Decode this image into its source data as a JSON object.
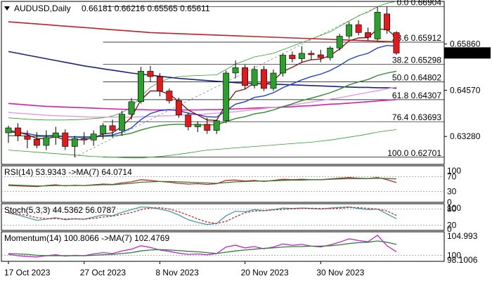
{
  "header": {
    "symbol_timeframe": "AUDUSD,Daily",
    "ohlc": "0.66181 0.66216 0.65565 0.65611"
  },
  "colors": {
    "bull": "#2ca02c",
    "bear": "#e31a1c",
    "ema_fast": "#8b1a1a",
    "ema_blue": "#1f3fd0",
    "ema_green": "#2e8b2e",
    "ma_red": "#c0202a",
    "ma_navy": "#1a237e",
    "ma_magenta": "#d81ea8",
    "ma_pink": "#e49ae0",
    "bollinger": "#2ca02c",
    "fib": "#000000",
    "rsi_line": "#c62828",
    "rsi_ma": "#2e7d32",
    "stoch_main": "#3aa0a8",
    "stoch_signal": "#c62828",
    "momentum_line": "#c026d3",
    "momentum_ma": "#2e7d32"
  },
  "chart_data": [
    {
      "type": "candlestick",
      "symbol": "AUDUSD",
      "timeframe": "Daily",
      "ylim": [
        0.625,
        0.6705
      ],
      "y_ticks": [
        "0.65860",
        "0.64570",
        "0.63280"
      ],
      "last_price": "0.65611",
      "x_tick_labels": [
        "17 Oct 2023",
        "27 Oct 2023",
        "8 Nov 2023",
        "20 Nov 2023",
        "30 Nov 2023"
      ],
      "x_tick_index": [
        0,
        8,
        16,
        25,
        33
      ],
      "candles": [
        {
          "o": 0.6338,
          "h": 0.6358,
          "l": 0.631,
          "c": 0.6352
        },
        {
          "o": 0.6352,
          "h": 0.6365,
          "l": 0.6315,
          "c": 0.633
        },
        {
          "o": 0.633,
          "h": 0.6345,
          "l": 0.6295,
          "c": 0.632
        },
        {
          "o": 0.632,
          "h": 0.634,
          "l": 0.6295,
          "c": 0.6303
        },
        {
          "o": 0.6303,
          "h": 0.6345,
          "l": 0.629,
          "c": 0.6325
        },
        {
          "o": 0.6325,
          "h": 0.6355,
          "l": 0.6305,
          "c": 0.6338
        },
        {
          "o": 0.6338,
          "h": 0.6348,
          "l": 0.629,
          "c": 0.63
        },
        {
          "o": 0.63,
          "h": 0.633,
          "l": 0.627,
          "c": 0.6322
        },
        {
          "o": 0.6322,
          "h": 0.634,
          "l": 0.6305,
          "c": 0.6318
        },
        {
          "o": 0.6318,
          "h": 0.6345,
          "l": 0.6302,
          "c": 0.6335
        },
        {
          "o": 0.6335,
          "h": 0.6365,
          "l": 0.632,
          "c": 0.6358
        },
        {
          "o": 0.6358,
          "h": 0.6375,
          "l": 0.6325,
          "c": 0.6345
        },
        {
          "o": 0.6345,
          "h": 0.64,
          "l": 0.633,
          "c": 0.639
        },
        {
          "o": 0.639,
          "h": 0.6435,
          "l": 0.6375,
          "c": 0.6425
        },
        {
          "o": 0.6425,
          "h": 0.6522,
          "l": 0.642,
          "c": 0.651
        },
        {
          "o": 0.651,
          "h": 0.6525,
          "l": 0.648,
          "c": 0.6495
        },
        {
          "o": 0.6495,
          "h": 0.6505,
          "l": 0.644,
          "c": 0.6455
        },
        {
          "o": 0.6455,
          "h": 0.6462,
          "l": 0.642,
          "c": 0.6428
        },
        {
          "o": 0.6428,
          "h": 0.6436,
          "l": 0.638,
          "c": 0.6388
        },
        {
          "o": 0.6388,
          "h": 0.6395,
          "l": 0.6345,
          "c": 0.6355
        },
        {
          "o": 0.6355,
          "h": 0.637,
          "l": 0.634,
          "c": 0.6362
        },
        {
          "o": 0.6362,
          "h": 0.638,
          "l": 0.6335,
          "c": 0.6345
        },
        {
          "o": 0.6345,
          "h": 0.6375,
          "l": 0.6335,
          "c": 0.6372
        },
        {
          "o": 0.6372,
          "h": 0.6512,
          "l": 0.6365,
          "c": 0.6505
        },
        {
          "o": 0.6505,
          "h": 0.654,
          "l": 0.649,
          "c": 0.652
        },
        {
          "o": 0.652,
          "h": 0.6528,
          "l": 0.646,
          "c": 0.647
        },
        {
          "o": 0.647,
          "h": 0.6525,
          "l": 0.6462,
          "c": 0.6515
        },
        {
          "o": 0.6515,
          "h": 0.6525,
          "l": 0.6455,
          "c": 0.6462
        },
        {
          "o": 0.6462,
          "h": 0.6515,
          "l": 0.6455,
          "c": 0.6505
        },
        {
          "o": 0.6505,
          "h": 0.656,
          "l": 0.6495,
          "c": 0.6555
        },
        {
          "o": 0.6555,
          "h": 0.6565,
          "l": 0.6535,
          "c": 0.6545
        },
        {
          "o": 0.6545,
          "h": 0.658,
          "l": 0.6535,
          "c": 0.656
        },
        {
          "o": 0.656,
          "h": 0.6568,
          "l": 0.6542,
          "c": 0.6556
        },
        {
          "o": 0.6556,
          "h": 0.657,
          "l": 0.6535,
          "c": 0.6548
        },
        {
          "o": 0.6548,
          "h": 0.658,
          "l": 0.654,
          "c": 0.6575
        },
        {
          "o": 0.6575,
          "h": 0.6615,
          "l": 0.6568,
          "c": 0.6608
        },
        {
          "o": 0.6608,
          "h": 0.6648,
          "l": 0.66,
          "c": 0.664
        },
        {
          "o": 0.664,
          "h": 0.6652,
          "l": 0.661,
          "c": 0.6618
        },
        {
          "o": 0.6618,
          "h": 0.6632,
          "l": 0.6596,
          "c": 0.6605
        },
        {
          "o": 0.66,
          "h": 0.669,
          "l": 0.6595,
          "c": 0.6675
        },
        {
          "o": 0.667,
          "h": 0.669,
          "l": 0.6615,
          "c": 0.6625
        },
        {
          "o": 0.6618,
          "h": 0.6622,
          "l": 0.6556,
          "c": 0.6561
        }
      ],
      "indicators": {
        "ema_fast": [
          0.6345,
          0.634,
          0.6333,
          0.6322,
          0.6322,
          0.6327,
          0.6318,
          0.6319,
          0.6319,
          0.6324,
          0.6335,
          0.6338,
          0.6356,
          0.6382,
          0.643,
          0.6455,
          0.6455,
          0.6446,
          0.6426,
          0.6402,
          0.6388,
          0.6374,
          0.6373,
          0.6418,
          0.6453,
          0.646,
          0.6478,
          0.6472,
          0.6484,
          0.6509,
          0.6521,
          0.6535,
          0.6542,
          0.6544,
          0.6554,
          0.6572,
          0.6595,
          0.6603,
          0.6604,
          0.6628,
          0.6627,
          0.6605
        ],
        "ema_blue": [
          0.634,
          0.6339,
          0.6336,
          0.6331,
          0.633,
          0.6331,
          0.6327,
          0.6326,
          0.6325,
          0.6326,
          0.633,
          0.6332,
          0.634,
          0.6352,
          0.6375,
          0.6392,
          0.64,
          0.6403,
          0.64,
          0.6393,
          0.6389,
          0.6383,
          0.6382,
          0.64,
          0.6418,
          0.6425,
          0.6437,
          0.6441,
          0.645,
          0.6464,
          0.6475,
          0.6486,
          0.6495,
          0.6502,
          0.6512,
          0.6526,
          0.6543,
          0.6553,
          0.656,
          0.6575,
          0.6582,
          0.658
        ],
        "ema_green": [
          0.633,
          0.633,
          0.6329,
          0.6328,
          0.6328,
          0.6328,
          0.6327,
          0.6327,
          0.6327,
          0.6327,
          0.6328,
          0.6329,
          0.6332,
          0.6337,
          0.6346,
          0.6353,
          0.6358,
          0.6361,
          0.6362,
          0.6361,
          0.6361,
          0.636,
          0.6361,
          0.6369,
          0.6378,
          0.6383,
          0.6391,
          0.6395,
          0.6402,
          0.6411,
          0.6419,
          0.6428,
          0.6435,
          0.6442,
          0.645,
          0.646,
          0.6472,
          0.648,
          0.6487,
          0.6498,
          0.6505,
          0.651
        ],
        "ma_red": [
          0.6648,
          0.6646,
          0.6644,
          0.6642,
          0.664,
          0.6638,
          0.6636,
          0.6634,
          0.6632,
          0.663,
          0.6628,
          0.6626,
          0.6624,
          0.6622,
          0.662,
          0.6618,
          0.6617,
          0.6616,
          0.6615,
          0.6614,
          0.6613,
          0.6612,
          0.6611,
          0.661,
          0.6609,
          0.6608,
          0.6607,
          0.6606,
          0.6605,
          0.6604,
          0.6603,
          0.6602,
          0.6601,
          0.66,
          0.6599,
          0.6598,
          0.6597,
          0.6596,
          0.6595,
          0.6594,
          0.6593,
          0.6592
        ],
        "ma_navy": [
          0.6565,
          0.656,
          0.6555,
          0.655,
          0.6545,
          0.654,
          0.6535,
          0.653,
          0.6525,
          0.6521,
          0.6517,
          0.6513,
          0.6509,
          0.6505,
          0.6502,
          0.6499,
          0.6496,
          0.6493,
          0.649,
          0.6488,
          0.6486,
          0.6484,
          0.6482,
          0.648,
          0.6478,
          0.6477,
          0.6476,
          0.6475,
          0.6474,
          0.6473,
          0.6472,
          0.6471,
          0.647,
          0.6469,
          0.6468,
          0.6467,
          0.6466,
          0.6465,
          0.6465,
          0.6464,
          0.6464,
          0.6463
        ],
        "ma_magenta": [
          0.642,
          0.6418,
          0.6416,
          0.6414,
          0.6412,
          0.6411,
          0.641,
          0.6409,
          0.6408,
          0.6407,
          0.6406,
          0.6405,
          0.6404,
          0.6403,
          0.6403,
          0.6402,
          0.6402,
          0.6402,
          0.6402,
          0.6402,
          0.6402,
          0.6403,
          0.6403,
          0.6404,
          0.6405,
          0.6406,
          0.6407,
          0.6408,
          0.6409,
          0.641,
          0.6411,
          0.6413,
          0.6414,
          0.6416,
          0.6418,
          0.6419,
          0.6421,
          0.6423,
          0.6425,
          0.6427,
          0.6429,
          0.6431
        ],
        "ma_pink": [
          0.6395,
          0.6393,
          0.6391,
          0.6389,
          0.6387,
          0.6386,
          0.6385,
          0.6384,
          0.6383,
          0.6382,
          0.6382,
          0.6382,
          0.6382,
          0.6382,
          0.6383,
          0.6384,
          0.6385,
          0.6386,
          0.6387,
          0.6388,
          0.6389,
          0.6391,
          0.6393,
          0.6395,
          0.6397,
          0.64,
          0.6403,
          0.6406,
          0.6409,
          0.6412,
          0.6416,
          0.642,
          0.6424,
          0.6428,
          0.6432,
          0.6436,
          0.6441,
          0.6446,
          0.6451,
          0.6456,
          0.6461,
          0.6466
        ],
        "bb_upper": [
          0.638,
          0.6378,
          0.6376,
          0.6375,
          0.6374,
          0.6374,
          0.6374,
          0.6375,
          0.6376,
          0.6378,
          0.638,
          0.6385,
          0.6395,
          0.641,
          0.644,
          0.6465,
          0.648,
          0.649,
          0.6495,
          0.6497,
          0.6498,
          0.6499,
          0.65,
          0.6515,
          0.653,
          0.654,
          0.655,
          0.6555,
          0.656,
          0.657,
          0.658,
          0.659,
          0.66,
          0.661,
          0.662,
          0.6635,
          0.665,
          0.6665,
          0.6675,
          0.669,
          0.67,
          0.6705
        ],
        "bb_lower": [
          0.629,
          0.6288,
          0.6286,
          0.6284,
          0.6282,
          0.628,
          0.6278,
          0.6276,
          0.6274,
          0.6272,
          0.6271,
          0.627,
          0.6269,
          0.6268,
          0.6268,
          0.627,
          0.6272,
          0.6275,
          0.6278,
          0.6282,
          0.6286,
          0.629,
          0.6292,
          0.6294,
          0.6296,
          0.6298,
          0.63,
          0.6302,
          0.6304,
          0.6306,
          0.6308,
          0.631,
          0.6312,
          0.6315,
          0.6318,
          0.6322,
          0.6326,
          0.633,
          0.6335,
          0.634,
          0.6344,
          0.6347
        ]
      },
      "fibonacci": [
        {
          "label": "0.0 0.66904",
          "value": 0.66904
        },
        {
          "label": "23.6 0.65912",
          "value": 0.65912
        },
        {
          "label": "38.2 0.65298",
          "value": 0.65298
        },
        {
          "label": "50.0 0.64802",
          "value": 0.64802
        },
        {
          "label": "61.8 0.64307",
          "value": 0.64307
        },
        {
          "label": "76.4 0.63693",
          "value": 0.63693
        },
        {
          "label": "100.0 0.62701",
          "value": 0.62701
        }
      ]
    },
    {
      "type": "line",
      "name": "RSI(14)",
      "legend": "RSI(14) 53.9343   ->MA(7) 64.0714",
      "ylim": [
        0,
        100
      ],
      "levels": [
        70,
        30
      ],
      "y_ticks": [
        "100",
        "70",
        "30",
        "0"
      ],
      "series": [
        {
          "values": [
            46,
            45,
            44,
            43,
            46,
            48,
            45,
            47,
            46,
            48,
            50,
            49,
            53,
            56,
            62,
            60,
            57,
            55,
            52,
            50,
            51,
            49,
            51,
            60,
            61,
            58,
            60,
            57,
            60,
            63,
            62,
            63,
            62,
            62,
            64,
            66,
            68,
            66,
            65,
            68,
            62,
            54
          ]
        },
        {
          "values": [
            48,
            47,
            46,
            45,
            45,
            46,
            46,
            46,
            46,
            47,
            48,
            48,
            50,
            52,
            55,
            56,
            57,
            57,
            56,
            55,
            54,
            53,
            52,
            54,
            56,
            57,
            58,
            58,
            59,
            60,
            61,
            61,
            62,
            62,
            63,
            64,
            65,
            65,
            65,
            66,
            65,
            64
          ]
        }
      ]
    },
    {
      "type": "line",
      "name": "Stoch(5,3,3)",
      "legend": "Stoch(5,3,3) 44.5362 56.0787",
      "ylim": [
        0,
        100
      ],
      "levels": [
        80,
        20
      ],
      "y_ticks": [
        "100",
        "80",
        "20",
        "0"
      ],
      "series": [
        {
          "values": [
            65,
            58,
            48,
            38,
            42,
            48,
            40,
            44,
            42,
            50,
            58,
            55,
            68,
            78,
            88,
            86,
            80,
            72,
            58,
            40,
            30,
            22,
            26,
            55,
            72,
            70,
            78,
            74,
            78,
            84,
            82,
            84,
            82,
            80,
            84,
            86,
            88,
            82,
            78,
            80,
            62,
            44
          ]
        },
        {
          "values": [
            66,
            62,
            56,
            48,
            44,
            44,
            43,
            43,
            42,
            45,
            50,
            54,
            60,
            67,
            78,
            84,
            85,
            80,
            70,
            57,
            43,
            31,
            26,
            34,
            51,
            66,
            73,
            74,
            77,
            79,
            81,
            83,
            83,
            82,
            82,
            83,
            86,
            85,
            83,
            80,
            73,
            56
          ]
        }
      ]
    },
    {
      "type": "line",
      "name": "Momentum(14)",
      "legend": "Momentum(14) 100.8066   ->MA(7) 102.4769",
      "ylim": [
        98.6,
        105.4
      ],
      "levels": [
        100
      ],
      "y_ticks": [
        "104.993",
        "100",
        "98.1006"
      ],
      "series": [
        {
          "values": [
            100.2,
            99.9,
            99.7,
            99.6,
            99.9,
            100.1,
            99.8,
            100.0,
            99.9,
            100.3,
            100.6,
            100.4,
            101.0,
            101.4,
            102.2,
            101.8,
            101.2,
            100.9,
            100.5,
            100.2,
            100.3,
            100.1,
            100.4,
            101.9,
            102.3,
            101.7,
            102.0,
            101.5,
            101.9,
            102.6,
            102.3,
            102.5,
            102.1,
            101.9,
            102.4,
            103.0,
            103.8,
            103.4,
            103.1,
            104.6,
            102.2,
            100.8
          ]
        },
        {
          "values": [
            100.4,
            100.3,
            100.2,
            100.0,
            99.9,
            99.9,
            99.9,
            99.9,
            99.9,
            100.0,
            100.1,
            100.2,
            100.4,
            100.6,
            101.0,
            101.2,
            101.3,
            101.2,
            101.1,
            100.9,
            100.8,
            100.6,
            100.4,
            100.7,
            101.0,
            101.2,
            101.4,
            101.6,
            101.7,
            101.9,
            102.0,
            102.0,
            102.1,
            102.1,
            102.2,
            102.4,
            102.7,
            102.9,
            103.0,
            103.3,
            103.0,
            102.5
          ]
        }
      ]
    }
  ]
}
